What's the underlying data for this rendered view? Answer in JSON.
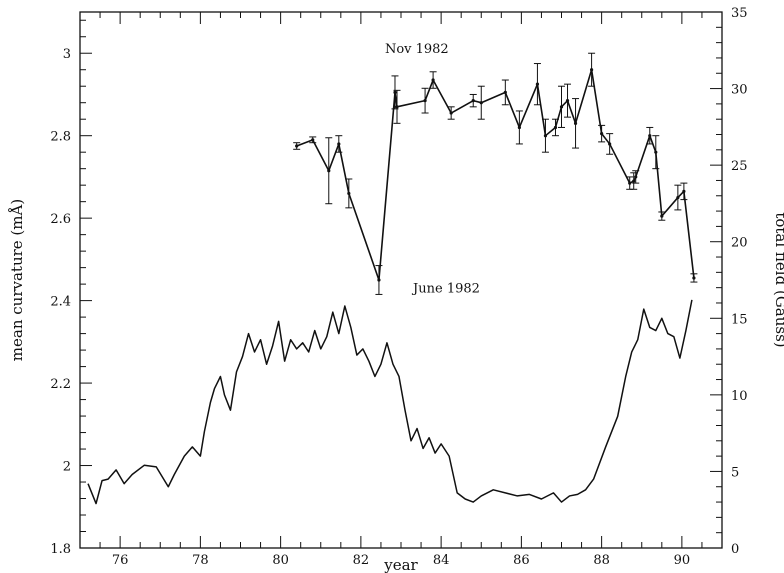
{
  "chart_data": {
    "type": "line",
    "title": "",
    "xlabel": "year",
    "ylabel": "mean curvature (mÅ)",
    "y2label": "total field (Gauss)",
    "xlim": [
      75,
      91
    ],
    "ylim": [
      1.8,
      3.1
    ],
    "y2lim": [
      0,
      35
    ],
    "xticks": [
      "76",
      "78",
      "80",
      "82",
      "84",
      "86",
      "88",
      "90"
    ],
    "yticks": [
      "1.8",
      "2",
      "2.2",
      "2.4",
      "2.6",
      "2.8",
      "3"
    ],
    "y2ticks": [
      "0",
      "5",
      "10",
      "15",
      "20",
      "25",
      "30",
      "35"
    ],
    "grid": false,
    "legend": "none",
    "annotations": [
      {
        "text": "Nov 1982",
        "x": 82.6,
        "y": 3.0
      },
      {
        "text": "June 1982",
        "x": 83.3,
        "y": 2.42
      }
    ],
    "series": [
      {
        "axis": "left",
        "marker": "errorbar",
        "points": [
          {
            "x": 80.4,
            "y": 2.775,
            "err": 0.008
          },
          {
            "x": 80.8,
            "y": 2.79,
            "err": 0.007
          },
          {
            "x": 81.2,
            "y": 2.715,
            "err": 0.08
          },
          {
            "x": 81.45,
            "y": 2.78,
            "err": 0.02
          },
          {
            "x": 81.7,
            "y": 2.66,
            "err": 0.035
          },
          {
            "x": 82.45,
            "y": 2.45,
            "err": 0.035
          },
          {
            "x": 82.85,
            "y": 2.905,
            "err": 0.04
          },
          {
            "x": 82.9,
            "y": 2.87,
            "err": 0.04
          },
          {
            "x": 83.6,
            "y": 2.885,
            "err": 0.03
          },
          {
            "x": 83.8,
            "y": 2.935,
            "err": 0.02
          },
          {
            "x": 84.25,
            "y": 2.855,
            "err": 0.015
          },
          {
            "x": 84.8,
            "y": 2.885,
            "err": 0.015
          },
          {
            "x": 85.0,
            "y": 2.88,
            "err": 0.04
          },
          {
            "x": 85.6,
            "y": 2.905,
            "err": 0.03
          },
          {
            "x": 85.95,
            "y": 2.82,
            "err": 0.04
          },
          {
            "x": 86.4,
            "y": 2.925,
            "err": 0.05
          },
          {
            "x": 86.6,
            "y": 2.8,
            "err": 0.04
          },
          {
            "x": 86.85,
            "y": 2.82,
            "err": 0.02
          },
          {
            "x": 87.0,
            "y": 2.87,
            "err": 0.05
          },
          {
            "x": 87.15,
            "y": 2.885,
            "err": 0.04
          },
          {
            "x": 87.35,
            "y": 2.83,
            "err": 0.06
          },
          {
            "x": 87.75,
            "y": 2.96,
            "err": 0.04
          },
          {
            "x": 88.0,
            "y": 2.805,
            "err": 0.02
          },
          {
            "x": 88.2,
            "y": 2.78,
            "err": 0.025
          },
          {
            "x": 88.7,
            "y": 2.685,
            "err": 0.015
          },
          {
            "x": 88.8,
            "y": 2.69,
            "err": 0.02
          },
          {
            "x": 88.85,
            "y": 2.7,
            "err": 0.015
          },
          {
            "x": 89.2,
            "y": 2.8,
            "err": 0.02
          },
          {
            "x": 89.35,
            "y": 2.76,
            "err": 0.04
          },
          {
            "x": 89.5,
            "y": 2.605,
            "err": 0.01
          },
          {
            "x": 89.9,
            "y": 2.65,
            "err": 0.03
          },
          {
            "x": 90.05,
            "y": 2.665,
            "err": 0.02
          },
          {
            "x": 90.3,
            "y": 2.455,
            "err": 0.01
          }
        ]
      },
      {
        "axis": "right",
        "marker": "none",
        "x": [
          75.2,
          75.4,
          75.55,
          75.7,
          75.9,
          76.1,
          76.3,
          76.6,
          76.9,
          77.2,
          77.35,
          77.6,
          77.8,
          78.0,
          78.1,
          78.25,
          78.35,
          78.5,
          78.6,
          78.75,
          78.9,
          79.05,
          79.2,
          79.35,
          79.5,
          79.65,
          79.8,
          79.95,
          80.1,
          80.25,
          80.4,
          80.55,
          80.7,
          80.85,
          81.0,
          81.15,
          81.3,
          81.45,
          81.6,
          81.75,
          81.9,
          82.05,
          82.2,
          82.35,
          82.5,
          82.65,
          82.8,
          82.95,
          83.1,
          83.25,
          83.4,
          83.55,
          83.7,
          83.85,
          84.0,
          84.2,
          84.4,
          84.6,
          84.8,
          85.0,
          85.3,
          85.6,
          85.9,
          86.2,
          86.5,
          86.8,
          87.0,
          87.2,
          87.4,
          87.6,
          87.8,
          88.1,
          88.4,
          88.6,
          88.75,
          88.9,
          89.05,
          89.2,
          89.35,
          89.5,
          89.65,
          89.8,
          89.95,
          90.1,
          90.25
        ],
        "y": [
          4.2,
          2.9,
          4.4,
          4.5,
          5.1,
          4.2,
          4.8,
          5.4,
          5.3,
          4.0,
          4.8,
          6.0,
          6.6,
          6.0,
          7.6,
          9.5,
          10.4,
          11.2,
          10.0,
          9.0,
          11.5,
          12.5,
          14.0,
          12.8,
          13.6,
          12.0,
          13.2,
          14.8,
          12.2,
          13.6,
          13.0,
          13.4,
          12.8,
          14.2,
          13.0,
          13.8,
          15.4,
          14.0,
          15.8,
          14.4,
          12.6,
          13.0,
          12.2,
          11.2,
          12.0,
          13.4,
          12.0,
          11.2,
          9.0,
          7.0,
          7.8,
          6.5,
          7.2,
          6.2,
          6.8,
          6.0,
          3.6,
          3.2,
          3.0,
          3.4,
          3.8,
          3.6,
          3.4,
          3.5,
          3.2,
          3.6,
          3.0,
          3.4,
          3.5,
          3.8,
          4.5,
          6.6,
          8.6,
          11.2,
          12.8,
          13.6,
          15.6,
          14.4,
          14.2,
          15.0,
          14.0,
          13.8,
          12.4,
          14.2,
          16.2
        ]
      }
    ]
  }
}
